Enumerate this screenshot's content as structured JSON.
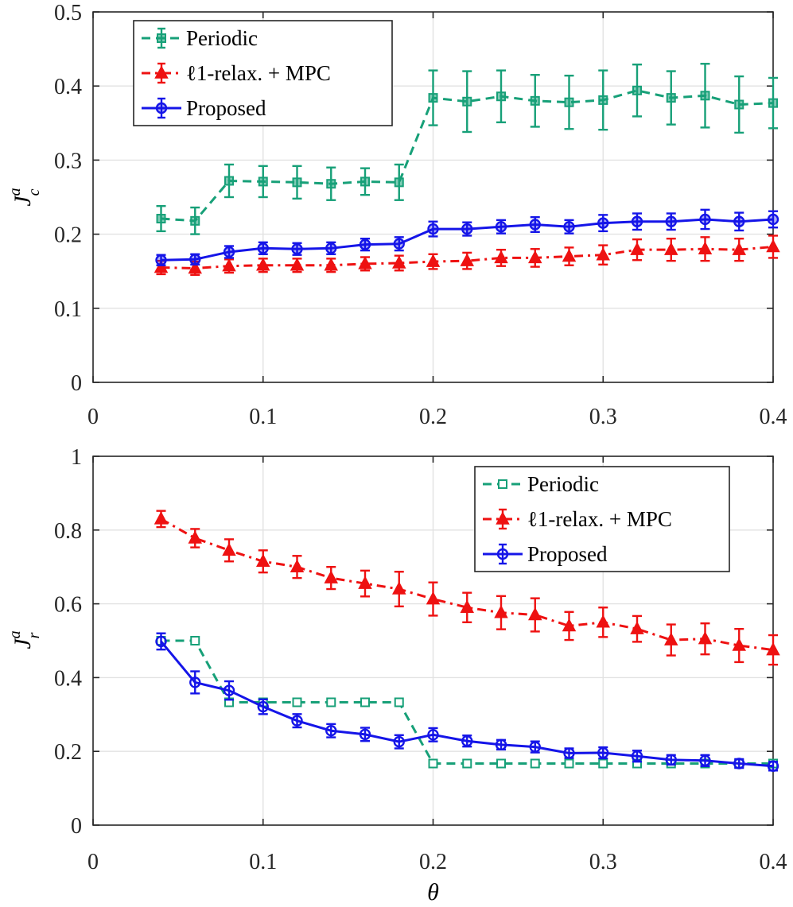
{
  "colors": {
    "periodic": "#17a078",
    "l1mpc": "#ee1111",
    "proposed": "#1515e8"
  },
  "chart_data": [
    {
      "type": "line",
      "ylabel": {
        "main": "J",
        "sup": "a",
        "sub": "c"
      },
      "xlabel": "",
      "xlim": [
        0,
        0.4
      ],
      "ylim": [
        0,
        0.5
      ],
      "xticks": [
        "0",
        "0.1",
        "0.2",
        "0.3",
        "0.4"
      ],
      "yticks": [
        "0",
        "0.1",
        "0.2",
        "0.3",
        "0.4",
        "0.5"
      ],
      "grid": true,
      "legend_position": "top-left",
      "x": [
        0.04,
        0.06,
        0.08,
        0.1,
        0.12,
        0.14,
        0.16,
        0.18,
        0.2,
        0.22,
        0.24,
        0.26,
        0.28,
        0.3,
        0.32,
        0.34,
        0.36,
        0.38,
        0.4
      ],
      "series": [
        {
          "key": "periodic",
          "name": "Periodic",
          "line": "dashed",
          "marker": "square-filled",
          "values": [
            0.221,
            0.218,
            0.272,
            0.271,
            0.27,
            0.268,
            0.271,
            0.27,
            0.384,
            0.379,
            0.386,
            0.38,
            0.378,
            0.381,
            0.394,
            0.384,
            0.387,
            0.375,
            0.377
          ],
          "errors": [
            0.017,
            0.018,
            0.022,
            0.021,
            0.022,
            0.022,
            0.018,
            0.024,
            0.037,
            0.041,
            0.035,
            0.035,
            0.036,
            0.04,
            0.035,
            0.036,
            0.043,
            0.038,
            0.034
          ]
        },
        {
          "key": "l1mpc",
          "name": "ℓ1-relax. + MPC",
          "line": "dashdot",
          "marker": "triangle-filled",
          "values": [
            0.155,
            0.154,
            0.157,
            0.158,
            0.158,
            0.158,
            0.16,
            0.161,
            0.163,
            0.164,
            0.168,
            0.168,
            0.17,
            0.172,
            0.179,
            0.179,
            0.18,
            0.179,
            0.183
          ],
          "errors": [
            0.009,
            0.009,
            0.009,
            0.009,
            0.009,
            0.009,
            0.009,
            0.01,
            0.01,
            0.011,
            0.011,
            0.012,
            0.012,
            0.013,
            0.014,
            0.015,
            0.016,
            0.015,
            0.015
          ]
        },
        {
          "key": "proposed",
          "name": "Proposed",
          "line": "solid",
          "marker": "circle-filled",
          "values": [
            0.165,
            0.166,
            0.176,
            0.181,
            0.18,
            0.181,
            0.186,
            0.187,
            0.207,
            0.207,
            0.21,
            0.213,
            0.21,
            0.215,
            0.217,
            0.217,
            0.22,
            0.217,
            0.22
          ],
          "errors": [
            0.007,
            0.007,
            0.008,
            0.008,
            0.008,
            0.008,
            0.008,
            0.009,
            0.01,
            0.009,
            0.009,
            0.01,
            0.009,
            0.011,
            0.011,
            0.011,
            0.013,
            0.012,
            0.011
          ]
        }
      ]
    },
    {
      "type": "line",
      "ylabel": {
        "main": "J",
        "sup": "a",
        "sub": "r"
      },
      "xlabel": "θ",
      "xlim": [
        0,
        0.4
      ],
      "ylim": [
        0,
        1
      ],
      "xticks": [
        "0",
        "0.1",
        "0.2",
        "0.3",
        "0.4"
      ],
      "yticks": [
        "0",
        "0.2",
        "0.4",
        "0.6",
        "0.8",
        "1"
      ],
      "grid": true,
      "legend_position": "top-right",
      "x": [
        0.04,
        0.06,
        0.08,
        0.1,
        0.12,
        0.14,
        0.16,
        0.18,
        0.2,
        0.22,
        0.24,
        0.26,
        0.28,
        0.3,
        0.32,
        0.34,
        0.36,
        0.38,
        0.4
      ],
      "series": [
        {
          "key": "periodic",
          "name": "Periodic",
          "line": "dashed",
          "marker": "square-open",
          "values": [
            0.5,
            0.5,
            0.333,
            0.333,
            0.333,
            0.333,
            0.333,
            0.333,
            0.167,
            0.167,
            0.167,
            0.167,
            0.167,
            0.167,
            0.167,
            0.167,
            0.167,
            0.167,
            0.167
          ],
          "errors": null
        },
        {
          "key": "l1mpc",
          "name": "ℓ1-relax. + MPC",
          "line": "dashdot",
          "marker": "triangle-filled",
          "values": [
            0.83,
            0.778,
            0.745,
            0.715,
            0.7,
            0.67,
            0.655,
            0.64,
            0.613,
            0.59,
            0.576,
            0.57,
            0.54,
            0.55,
            0.532,
            0.502,
            0.505,
            0.487,
            0.475
          ],
          "errors": [
            0.022,
            0.025,
            0.03,
            0.03,
            0.03,
            0.03,
            0.035,
            0.047,
            0.045,
            0.04,
            0.045,
            0.045,
            0.038,
            0.04,
            0.035,
            0.042,
            0.042,
            0.045,
            0.04
          ]
        },
        {
          "key": "proposed",
          "name": "Proposed",
          "line": "solid",
          "marker": "circle-open",
          "values": [
            0.498,
            0.387,
            0.365,
            0.321,
            0.283,
            0.256,
            0.246,
            0.226,
            0.245,
            0.228,
            0.218,
            0.212,
            0.195,
            0.196,
            0.187,
            0.177,
            0.175,
            0.167,
            0.16
          ],
          "errors": [
            0.022,
            0.03,
            0.025,
            0.02,
            0.018,
            0.018,
            0.018,
            0.018,
            0.018,
            0.015,
            0.013,
            0.015,
            0.013,
            0.015,
            0.015,
            0.013,
            0.015,
            0.012,
            0.012
          ]
        }
      ]
    }
  ]
}
